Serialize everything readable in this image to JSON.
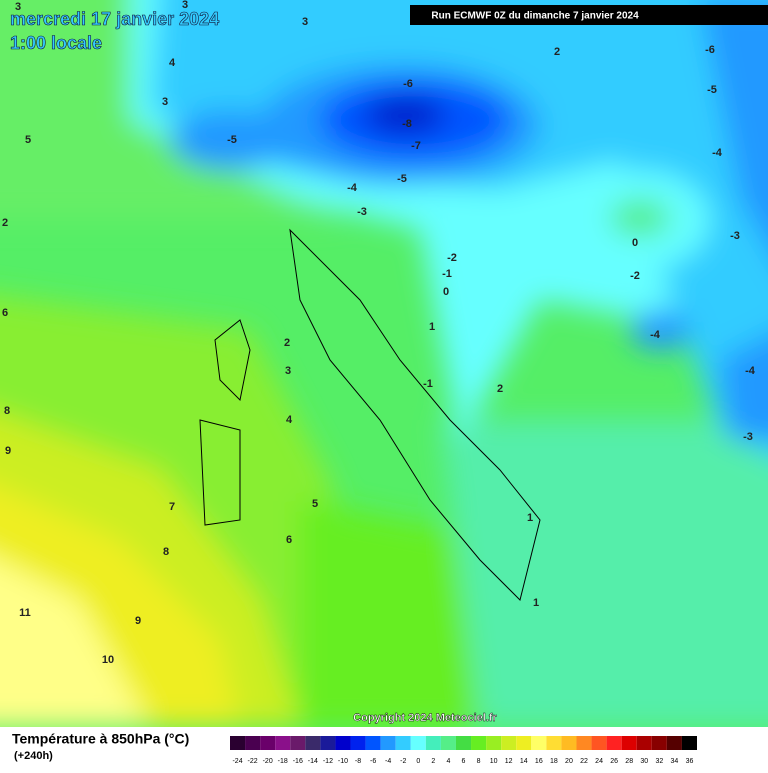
{
  "header": {
    "date": "mercredi 17 janvier 2024",
    "time": "1:00 locale",
    "run": "Run ECMWF 0Z du dimanche 7 janvier 2024"
  },
  "copyright": "Copyright 2024 Meteociel.fr",
  "footer": {
    "title": "Température à 850hPa (°C)",
    "lead": "(+240h)"
  },
  "contour_labels": [
    3,
    3,
    3,
    2,
    -6,
    4,
    -5,
    3,
    -6,
    5,
    -8,
    -5,
    -7,
    -4,
    -5,
    -4,
    -3,
    2,
    -3,
    0,
    -2,
    -1,
    -2,
    0,
    6,
    1,
    2,
    -4,
    3,
    -1,
    -4,
    2,
    8,
    4,
    -3,
    9,
    5,
    7,
    1,
    6,
    8,
    1,
    11,
    9,
    10
  ],
  "colorbar": {
    "ticks": [
      -24,
      -22,
      -20,
      -18,
      -16,
      -14,
      -12,
      -10,
      -8,
      -6,
      -4,
      -2,
      0,
      2,
      4,
      6,
      8,
      10,
      12,
      14,
      16,
      18,
      20,
      22,
      24,
      26,
      28,
      30,
      32,
      34,
      36
    ],
    "colors": [
      "#2a0030",
      "#4a0050",
      "#6a006a",
      "#8a108a",
      "#6a1a6a",
      "#3a2a6a",
      "#1a1a9a",
      "#0000cc",
      "#0022ee",
      "#0055ff",
      "#2299ff",
      "#33ccff",
      "#66ffff",
      "#44eebb",
      "#55ee88",
      "#44dd44",
      "#66ee22",
      "#99ee22",
      "#ccee22",
      "#eeee22",
      "#ffff66",
      "#ffdd33",
      "#ffbb22",
      "#ff8822",
      "#ff5522",
      "#ff2222",
      "#dd0000",
      "#aa0000",
      "#880000",
      "#550000",
      "#000000"
    ]
  }
}
